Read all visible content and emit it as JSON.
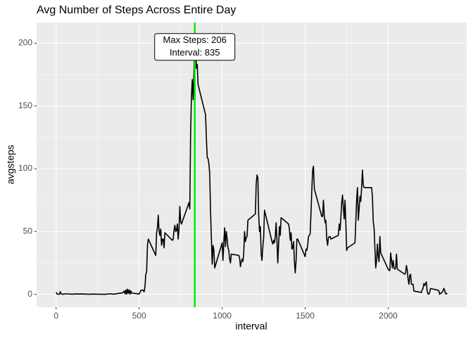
{
  "chart_data": {
    "type": "line",
    "title": "Avg Number of Steps Across Entire Day",
    "x_label": "interval",
    "y_label": "avgsteps",
    "x": [
      0,
      5,
      10,
      15,
      20,
      25,
      30,
      40,
      55,
      100,
      120,
      135,
      150,
      205,
      220,
      245,
      300,
      320,
      345,
      400,
      410,
      415,
      420,
      425,
      430,
      435,
      440,
      445,
      450,
      455,
      500,
      510,
      520,
      530,
      535,
      540,
      545,
      550,
      555,
      600,
      605,
      610,
      615,
      620,
      625,
      630,
      635,
      640,
      645,
      650,
      655,
      700,
      705,
      710,
      715,
      720,
      725,
      730,
      735,
      740,
      745,
      750,
      755,
      800,
      805,
      810,
      815,
      820,
      825,
      830,
      835,
      840,
      845,
      850,
      855,
      900,
      905,
      910,
      915,
      920,
      925,
      930,
      935,
      940,
      945,
      950,
      955,
      1000,
      1005,
      1010,
      1015,
      1020,
      1025,
      1030,
      1035,
      1040,
      1045,
      1050,
      1055,
      1100,
      1105,
      1110,
      1115,
      1120,
      1125,
      1130,
      1135,
      1140,
      1145,
      1150,
      1155,
      1200,
      1205,
      1210,
      1215,
      1220,
      1225,
      1230,
      1235,
      1240,
      1245,
      1250,
      1255,
      1300,
      1305,
      1310,
      1315,
      1320,
      1325,
      1330,
      1335,
      1340,
      1345,
      1350,
      1355,
      1400,
      1405,
      1410,
      1415,
      1420,
      1425,
      1430,
      1435,
      1440,
      1445,
      1450,
      1455,
      1500,
      1505,
      1510,
      1515,
      1520,
      1525,
      1530,
      1535,
      1540,
      1545,
      1550,
      1555,
      1600,
      1605,
      1610,
      1615,
      1620,
      1625,
      1630,
      1635,
      1640,
      1645,
      1650,
      1655,
      1700,
      1705,
      1710,
      1715,
      1720,
      1725,
      1730,
      1735,
      1740,
      1745,
      1750,
      1755,
      1800,
      1805,
      1810,
      1815,
      1820,
      1825,
      1830,
      1835,
      1840,
      1845,
      1850,
      1855,
      1900,
      1905,
      1910,
      1915,
      1920,
      1925,
      1930,
      1935,
      1940,
      1945,
      1950,
      1955,
      2000,
      2005,
      2010,
      2015,
      2020,
      2025,
      2030,
      2035,
      2040,
      2045,
      2050,
      2055,
      2100,
      2105,
      2110,
      2115,
      2120,
      2125,
      2130,
      2135,
      2140,
      2145,
      2150,
      2155,
      2200,
      2205,
      2210,
      2215,
      2220,
      2225,
      2230,
      2235,
      2240,
      2245,
      2250,
      2255,
      2300,
      2305,
      2310,
      2315,
      2320,
      2325,
      2330,
      2335,
      2340,
      2345,
      2350,
      2355
    ],
    "series": [
      {
        "name": "avgsteps",
        "color": "#000000",
        "values": [
          1.7,
          0.3,
          0.1,
          0.2,
          0.1,
          2.1,
          0.5,
          0,
          0.4,
          0.1,
          0.3,
          0.2,
          0.3,
          0,
          0.2,
          0.1,
          0,
          0.4,
          0.1,
          1.2,
          2.6,
          0.3,
          3.5,
          0.2,
          4.1,
          0.8,
          3.5,
          0.1,
          2.8,
          1,
          0.2,
          3,
          3.5,
          2,
          6,
          16,
          18,
          39,
          44,
          31,
          49,
          53,
          63,
          50,
          47,
          52,
          39,
          44,
          44,
          37,
          49,
          43,
          44,
          51,
          55,
          50,
          51,
          56,
          44,
          52,
          70,
          58,
          56,
          73,
          68,
          129,
          158,
          171,
          155,
          177,
          206.17,
          196,
          180,
          183,
          167,
          143,
          124,
          109,
          108,
          104,
          96,
          66,
          45,
          24,
          39,
          35,
          21,
          41,
          27,
          42,
          53,
          38,
          50,
          44,
          37,
          35,
          28,
          25,
          32,
          31,
          29,
          22,
          26,
          28,
          26,
          33,
          50,
          42,
          45,
          46,
          59,
          64,
          88,
          95,
          93,
          63,
          50,
          54,
          32,
          27,
          38,
          45,
          67,
          42,
          40,
          43,
          41,
          46,
          57,
          43,
          25,
          40,
          54,
          47,
          61,
          56,
          52,
          43,
          49,
          36,
          37,
          42,
          27,
          17,
          26,
          44,
          44,
          30,
          36,
          35,
          39,
          46,
          47,
          48,
          65,
          83,
          99,
          102,
          84,
          62,
          62,
          75,
          63,
          57,
          59,
          44,
          39,
          45,
          46,
          46,
          44,
          47,
          56,
          51,
          61,
          73,
          79,
          69,
          60,
          75,
          57,
          35,
          37,
          41,
          58,
          75,
          85,
          59,
          68,
          78,
          74,
          85,
          99,
          87,
          85,
          85,
          78,
          58,
          53,
          37,
          21,
          27,
          40,
          30,
          26,
          46,
          33,
          20,
          19,
          19,
          33,
          27,
          21,
          27,
          21,
          20,
          21,
          32,
          20,
          16,
          17,
          23,
          19,
          12,
          8,
          15,
          16,
          8,
          8,
          8,
          2.6,
          1.5,
          3.7,
          4.8,
          8.5,
          7.1,
          8.7,
          9.8,
          2.2,
          0.3,
          0.1,
          1.6,
          4.6,
          3.3,
          2.8,
          0,
          0.8,
          1,
          1.6,
          2.6,
          4.7,
          3.3,
          0.6,
          0.2,
          1.1
        ]
      }
    ],
    "vline": {
      "x": 835,
      "color": "#00ee00"
    },
    "annotation": {
      "x": 835,
      "y": 197,
      "lines": [
        "Max Steps: 206",
        "Interval: 835"
      ]
    },
    "xlim": [
      -117.75,
      2472.75
    ],
    "xticks": [
      0,
      500,
      1000,
      1500,
      2000
    ],
    "ylim": [
      -10.31,
      216.48
    ],
    "yticks": [
      0,
      50,
      100,
      150,
      200
    ],
    "grid": true
  }
}
